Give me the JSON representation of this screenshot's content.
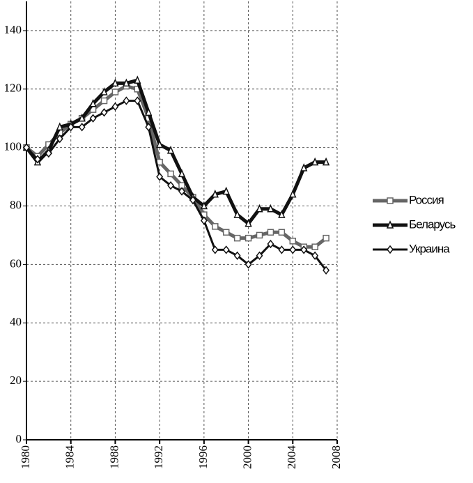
{
  "chart_data": {
    "type": "line",
    "x": [
      1980,
      1981,
      1982,
      1983,
      1984,
      1985,
      1986,
      1987,
      1988,
      1989,
      1990,
      1991,
      1992,
      1993,
      1994,
      1995,
      1996,
      1997,
      1998,
      1999,
      2000,
      2001,
      2002,
      2003,
      2004,
      2005,
      2006,
      2007
    ],
    "series": [
      {
        "name": "Россия",
        "color": "#666666",
        "marker": "square",
        "values": [
          100,
          97,
          101,
          105,
          108,
          110,
          113,
          116,
          119,
          121,
          120,
          110,
          95,
          91,
          87,
          83,
          77,
          73,
          71,
          69,
          69,
          70,
          71,
          71,
          68,
          66,
          66,
          69
        ]
      },
      {
        "name": "Беларусь",
        "color": "#111111",
        "marker": "triangle",
        "values": [
          100,
          95,
          99,
          107,
          108,
          110,
          115,
          119,
          122,
          122,
          123,
          112,
          101,
          99,
          91,
          83,
          80,
          84,
          85,
          77,
          74,
          79,
          79,
          77,
          84,
          93,
          95,
          95
        ]
      },
      {
        "name": "Украина",
        "color": "#111111",
        "marker": "diamond",
        "values": [
          100,
          96,
          98,
          103,
          107,
          107,
          110,
          112,
          114,
          116,
          116,
          107,
          90,
          87,
          85,
          82,
          75,
          65,
          65,
          63,
          60,
          63,
          67,
          65,
          65,
          65,
          63,
          58
        ]
      }
    ],
    "xlim": [
      1980,
      2008
    ],
    "xticks": [
      1980,
      1984,
      1988,
      1992,
      1996,
      2000,
      2004,
      2008
    ],
    "ylim": [
      0,
      150
    ],
    "yticks": [
      0,
      20,
      40,
      60,
      80,
      100,
      120,
      140
    ],
    "grid": true,
    "legend": "right"
  }
}
